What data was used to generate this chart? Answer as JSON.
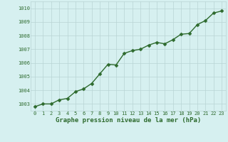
{
  "x": [
    0,
    1,
    2,
    3,
    4,
    5,
    6,
    7,
    8,
    9,
    10,
    11,
    12,
    13,
    14,
    15,
    16,
    17,
    18,
    19,
    20,
    21,
    22,
    23
  ],
  "y": [
    1002.8,
    1003.0,
    1003.0,
    1003.3,
    1003.4,
    1003.9,
    1004.1,
    1004.5,
    1005.2,
    1005.9,
    1005.85,
    1006.7,
    1006.9,
    1007.0,
    1007.3,
    1007.5,
    1007.4,
    1007.7,
    1008.1,
    1008.15,
    1008.8,
    1009.1,
    1009.65,
    1009.8
  ],
  "ylim": [
    1002.5,
    1010.5
  ],
  "xlim": [
    -0.5,
    23.5
  ],
  "yticks": [
    1003,
    1004,
    1005,
    1006,
    1007,
    1008,
    1009,
    1010
  ],
  "xticks": [
    0,
    1,
    2,
    3,
    4,
    5,
    6,
    7,
    8,
    9,
    10,
    11,
    12,
    13,
    14,
    15,
    16,
    17,
    18,
    19,
    20,
    21,
    22,
    23
  ],
  "xlabel": "Graphe pression niveau de la mer (hPa)",
  "line_color": "#2d6a2d",
  "marker_color": "#2d6a2d",
  "bg_color": "#d6f0f0",
  "grid_color": "#b8d4d4",
  "axis_label_color": "#2d6a2d",
  "tick_color": "#2d6a2d",
  "xlabel_fontsize": 6.5,
  "tick_fontsize": 5.0,
  "line_width": 1.0,
  "marker_size": 2.5
}
